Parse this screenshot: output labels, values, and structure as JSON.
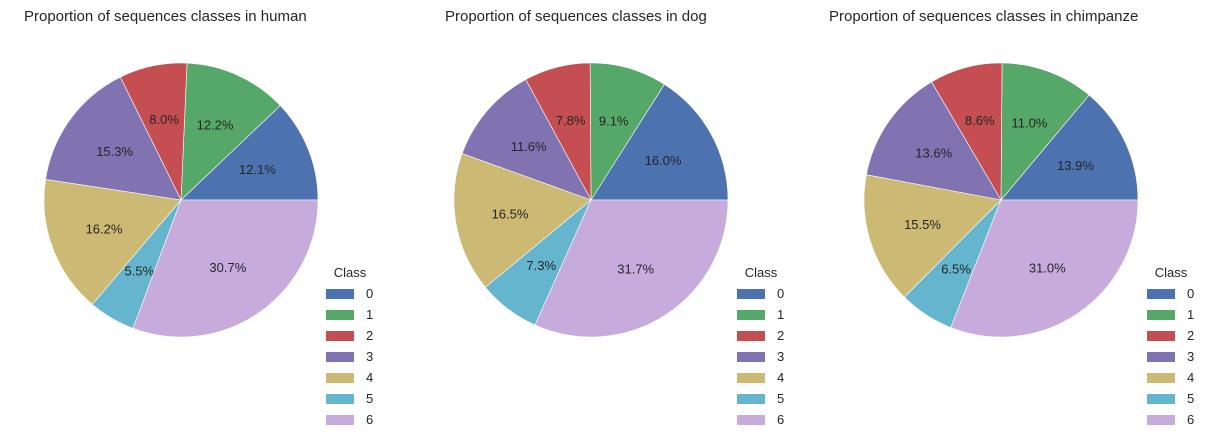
{
  "colors": [
    "#4c72b0",
    "#55a868",
    "#c44e52",
    "#8172b2",
    "#ccb974",
    "#64b5cd",
    "#c6abdc"
  ],
  "chart_data": [
    {
      "type": "pie",
      "title": "Proportion of sequences classes in human",
      "legend_title": "Class",
      "legend_placement": "lower-right",
      "categories": [
        "0",
        "1",
        "2",
        "3",
        "4",
        "5",
        "6"
      ],
      "values": [
        12.1,
        12.2,
        8.0,
        15.3,
        16.2,
        5.5,
        30.7
      ],
      "labels": [
        "12.1%",
        "12.2%",
        "8.0%",
        "15.3%",
        "16.2%",
        "5.5%",
        "30.7%"
      ]
    },
    {
      "type": "pie",
      "title": "Proportion of sequences classes in dog",
      "legend_title": "Class",
      "legend_placement": "lower-right",
      "categories": [
        "0",
        "1",
        "2",
        "3",
        "4",
        "5",
        "6"
      ],
      "values": [
        16.0,
        9.1,
        7.8,
        11.6,
        16.5,
        7.3,
        31.7
      ],
      "labels": [
        "16.0%",
        "9.1%",
        "7.8%",
        "11.6%",
        "16.5%",
        "7.3%",
        "31.7%"
      ]
    },
    {
      "type": "pie",
      "title": "Proportion of sequences classes in chimpanze",
      "legend_title": "Class",
      "legend_placement": "lower-right",
      "categories": [
        "0",
        "1",
        "2",
        "3",
        "4",
        "5",
        "6"
      ],
      "values": [
        13.9,
        11.0,
        8.6,
        13.6,
        15.5,
        6.5,
        31.0
      ],
      "labels": [
        "13.9%",
        "11.0%",
        "8.6%",
        "13.6%",
        "15.5%",
        "6.5%",
        "31.0%"
      ]
    }
  ]
}
